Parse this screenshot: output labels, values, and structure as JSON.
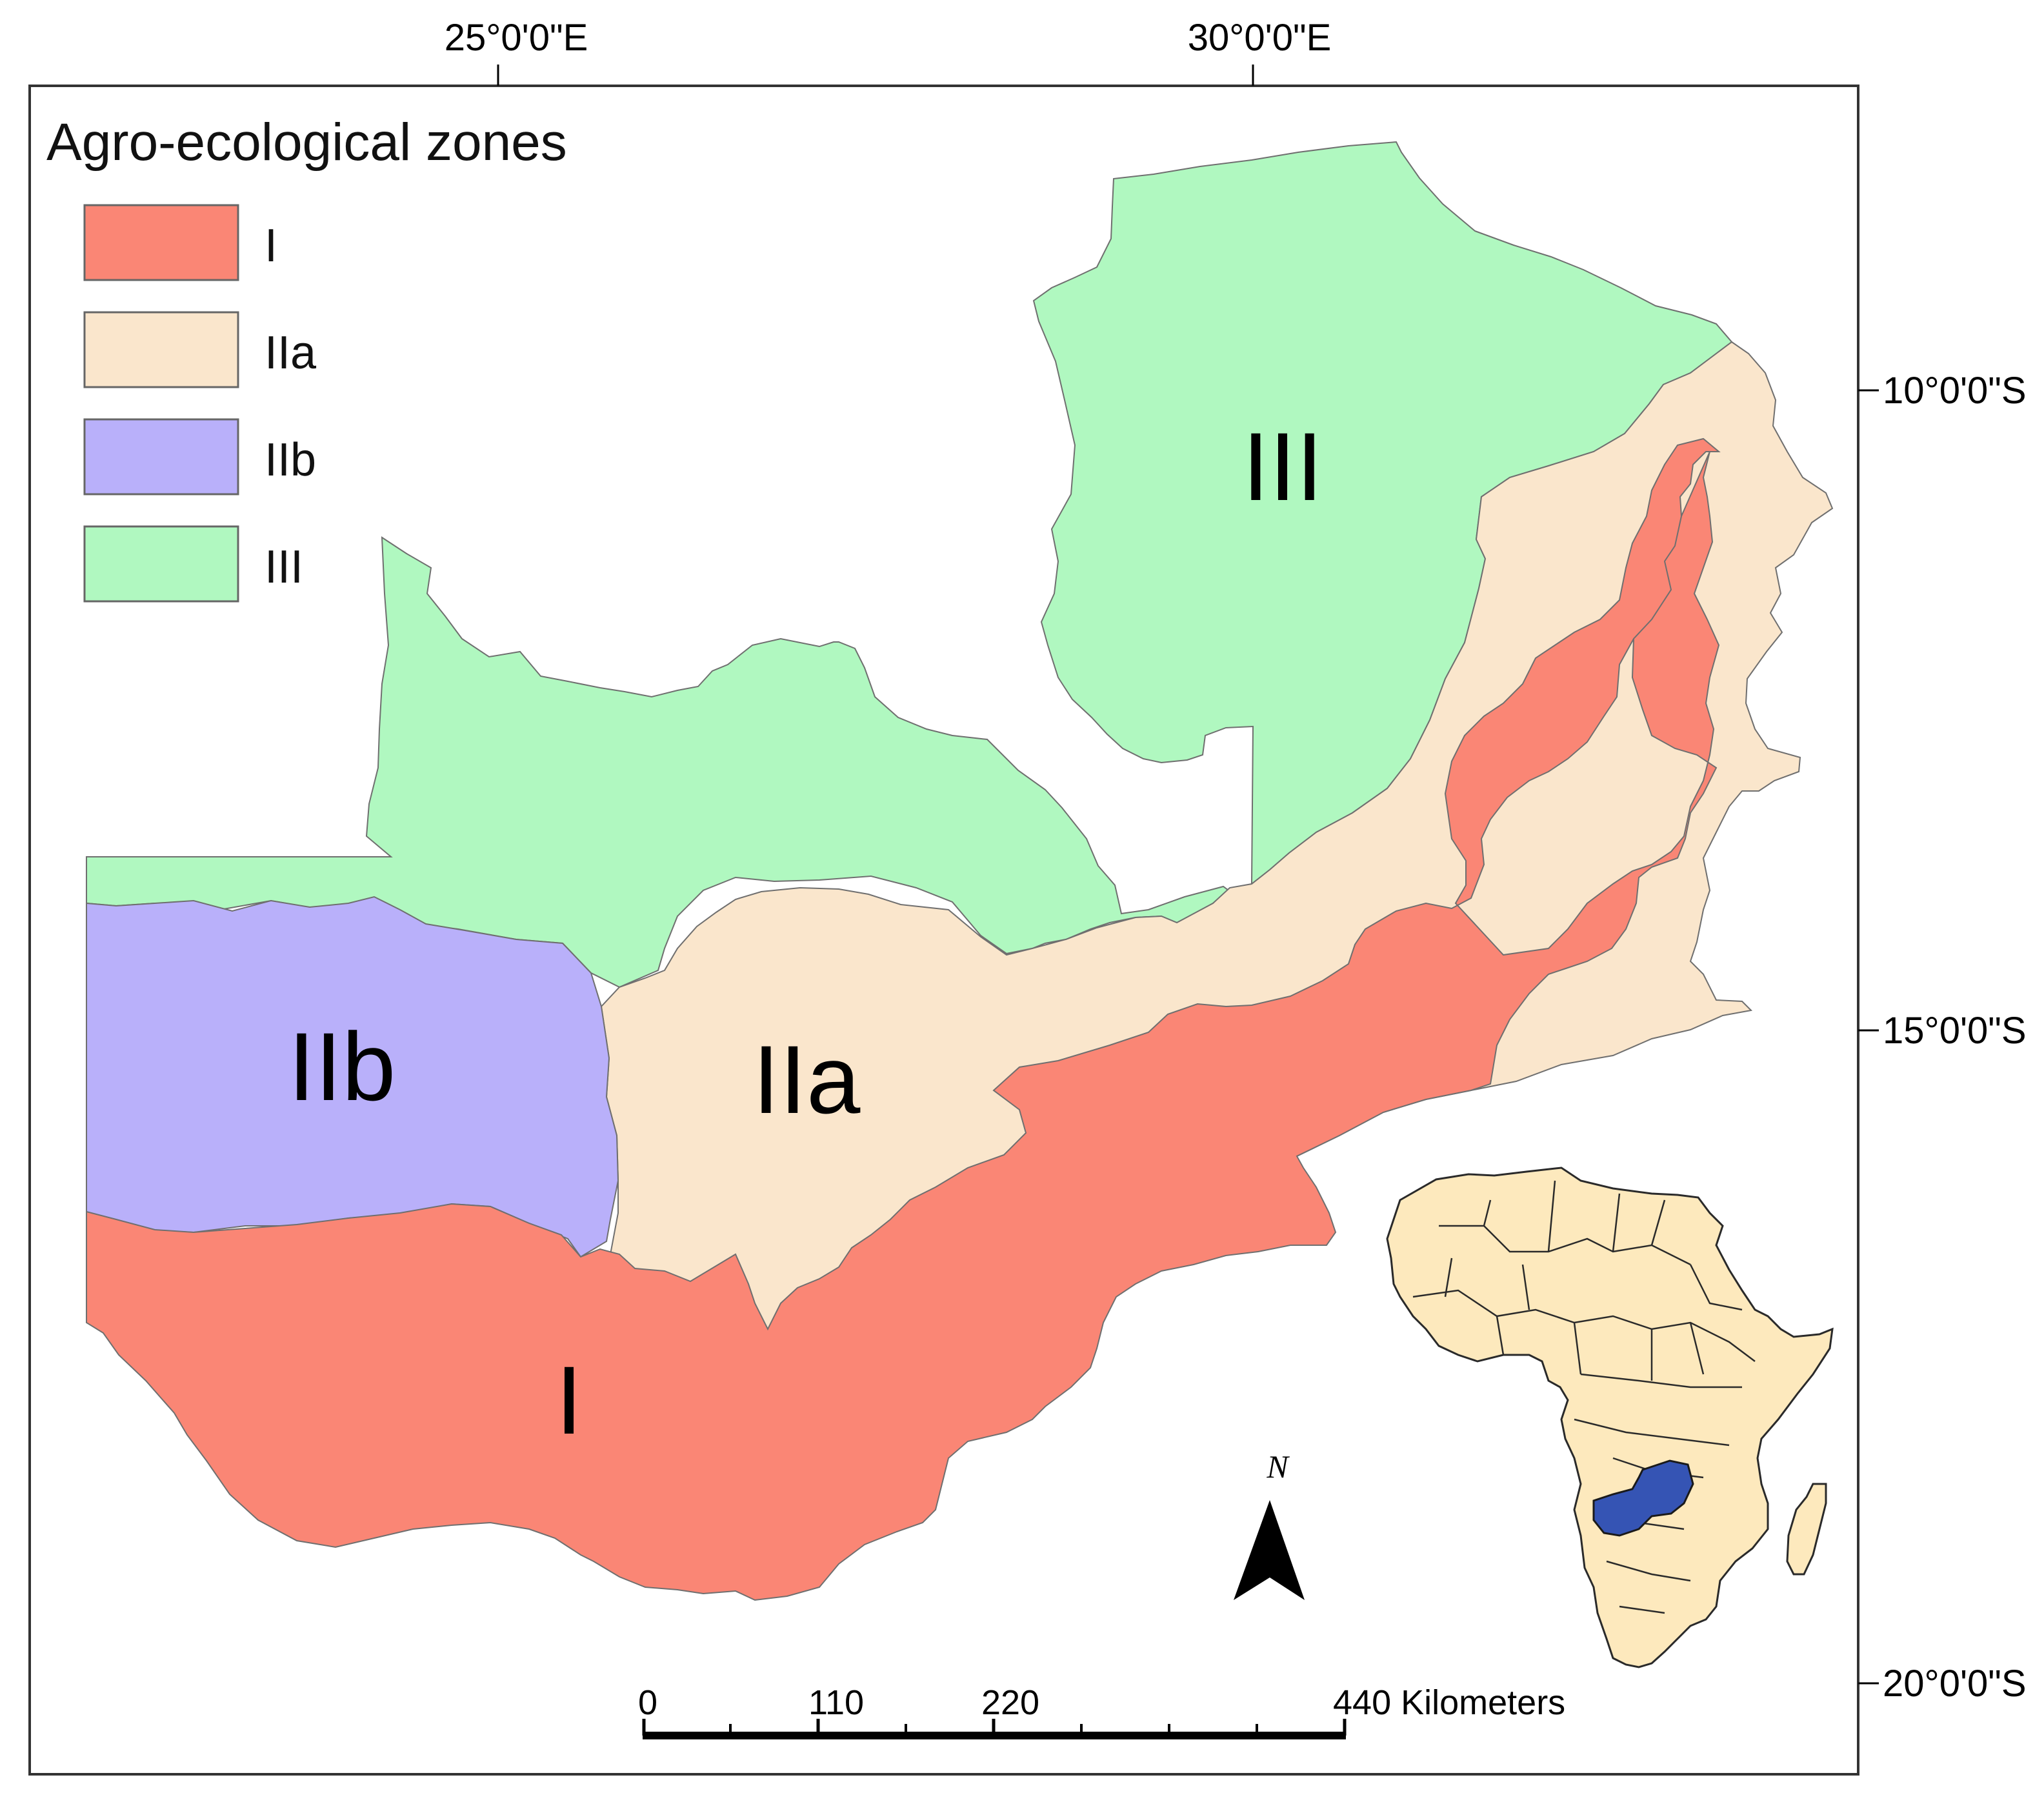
{
  "graticule": {
    "lon": [
      {
        "label": "25°0'0\"E"
      },
      {
        "label": "30°0'0\"E"
      }
    ],
    "lat": [
      {
        "label": "10°0'0\"S"
      },
      {
        "label": "15°0'0\"S"
      },
      {
        "label": "20°0'0\"S"
      }
    ]
  },
  "legend": {
    "title": "Agro-ecological zones",
    "items": [
      {
        "label": "I",
        "color": "#fa8675"
      },
      {
        "label": "IIa",
        "color": "#fae6cc"
      },
      {
        "label": "IIb",
        "color": "#b9b0fa"
      },
      {
        "label": "III",
        "color": "#b0f8c0"
      }
    ]
  },
  "zones": {
    "I": {
      "label": "I",
      "color": "#fa8675"
    },
    "IIa": {
      "label": "IIa",
      "color": "#fae6cc"
    },
    "IIb": {
      "label": "IIb",
      "color": "#b9b0fa"
    },
    "III": {
      "label": "III",
      "color": "#b0f8c0"
    }
  },
  "north_arrow": {
    "label": "N"
  },
  "scale_bar": {
    "ticks": [
      "0",
      "110",
      "220",
      "440 Kilometers"
    ]
  },
  "inset": {
    "africa_fill": "#fde9bd",
    "highlight_color": "#3554b4"
  }
}
